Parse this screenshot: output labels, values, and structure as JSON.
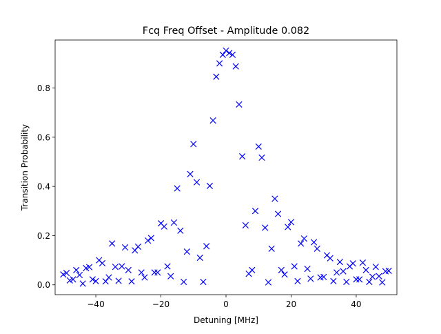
{
  "chart_data": {
    "type": "scatter",
    "title": "Fcq Freq Offset - Amplitude 0.082",
    "xlabel": "Detuning [MHz]",
    "ylabel": "Transition Probability",
    "xlim": [
      -52.5,
      52.5
    ],
    "ylim": [
      -0.04,
      0.995
    ],
    "xticks": [
      -40,
      -20,
      0,
      20,
      40
    ],
    "xtick_labels": [
      "−40",
      "−20",
      "0",
      "20",
      "40"
    ],
    "yticks": [
      0.0,
      0.2,
      0.4,
      0.6,
      0.8
    ],
    "ytick_labels": [
      "0.0",
      "0.2",
      "0.4",
      "0.6",
      "0.8"
    ],
    "grid": false,
    "legend": null,
    "marker": "x",
    "marker_color": "#0000ff",
    "series": [
      {
        "points": [
          [
            -50.0,
            0.042
          ],
          [
            -49.0,
            0.048
          ],
          [
            -48.0,
            0.018
          ],
          [
            -47.0,
            0.022
          ],
          [
            -46.0,
            0.06
          ],
          [
            -45.0,
            0.04
          ],
          [
            -44.0,
            0.005
          ],
          [
            -43.0,
            0.068
          ],
          [
            -42.0,
            0.072
          ],
          [
            -41.0,
            0.022
          ],
          [
            -40.0,
            0.015
          ],
          [
            -39.0,
            0.1
          ],
          [
            -38.0,
            0.088
          ],
          [
            -37.0,
            0.014
          ],
          [
            -36.0,
            0.03
          ],
          [
            -35.0,
            0.168
          ],
          [
            -34.0,
            0.073
          ],
          [
            -33.0,
            0.016
          ],
          [
            -32.0,
            0.075
          ],
          [
            -31.0,
            0.152
          ],
          [
            -30.0,
            0.06
          ],
          [
            -29.0,
            0.014
          ],
          [
            -28.0,
            0.14
          ],
          [
            -27.0,
            0.155
          ],
          [
            -26.0,
            0.05
          ],
          [
            -25.0,
            0.03
          ],
          [
            -24.0,
            0.18
          ],
          [
            -23.0,
            0.19
          ],
          [
            -22.0,
            0.05
          ],
          [
            -21.0,
            0.05
          ],
          [
            -20.0,
            0.25
          ],
          [
            -19.0,
            0.237
          ],
          [
            -18.0,
            0.075
          ],
          [
            -17.0,
            0.035
          ],
          [
            -16.0,
            0.253
          ],
          [
            -15.0,
            0.392
          ],
          [
            -14.0,
            0.22
          ],
          [
            -13.0,
            0.012
          ],
          [
            -12.0,
            0.135
          ],
          [
            -11.0,
            0.45
          ],
          [
            -10.0,
            0.572
          ],
          [
            -9.0,
            0.417
          ],
          [
            -8.0,
            0.11
          ],
          [
            -7.0,
            0.012
          ],
          [
            -6.0,
            0.157
          ],
          [
            -5.0,
            0.402
          ],
          [
            -4.0,
            0.668
          ],
          [
            -3.0,
            0.846
          ],
          [
            -2.0,
            0.9
          ],
          [
            -1.0,
            0.935
          ],
          [
            0.0,
            0.952
          ],
          [
            1.0,
            0.942
          ],
          [
            2.0,
            0.935
          ],
          [
            3.0,
            0.888
          ],
          [
            4.0,
            0.733
          ],
          [
            5.0,
            0.522
          ],
          [
            6.0,
            0.242
          ],
          [
            7.0,
            0.045
          ],
          [
            8.0,
            0.06
          ],
          [
            9.0,
            0.3
          ],
          [
            10.0,
            0.562
          ],
          [
            11.0,
            0.517
          ],
          [
            12.0,
            0.232
          ],
          [
            13.0,
            0.01
          ],
          [
            14.0,
            0.147
          ],
          [
            15.0,
            0.35
          ],
          [
            16.0,
            0.288
          ],
          [
            17.0,
            0.06
          ],
          [
            18.0,
            0.042
          ],
          [
            19.0,
            0.235
          ],
          [
            20.0,
            0.255
          ],
          [
            21.0,
            0.075
          ],
          [
            22.0,
            0.015
          ],
          [
            23.0,
            0.168
          ],
          [
            24.0,
            0.188
          ],
          [
            25.0,
            0.065
          ],
          [
            26.0,
            0.025
          ],
          [
            27.0,
            0.173
          ],
          [
            28.0,
            0.147
          ],
          [
            29.0,
            0.03
          ],
          [
            30.0,
            0.032
          ],
          [
            31.0,
            0.12
          ],
          [
            32.0,
            0.108
          ],
          [
            33.0,
            0.015
          ],
          [
            34.0,
            0.05
          ],
          [
            35.0,
            0.093
          ],
          [
            36.0,
            0.055
          ],
          [
            37.0,
            0.012
          ],
          [
            38.0,
            0.075
          ],
          [
            39.0,
            0.087
          ],
          [
            40.0,
            0.022
          ],
          [
            41.0,
            0.022
          ],
          [
            42.0,
            0.09
          ],
          [
            43.0,
            0.06
          ],
          [
            44.0,
            0.012
          ],
          [
            45.0,
            0.033
          ],
          [
            46.0,
            0.073
          ],
          [
            47.0,
            0.035
          ],
          [
            48.0,
            0.01
          ],
          [
            49.0,
            0.055
          ],
          [
            50.0,
            0.057
          ]
        ]
      }
    ]
  }
}
